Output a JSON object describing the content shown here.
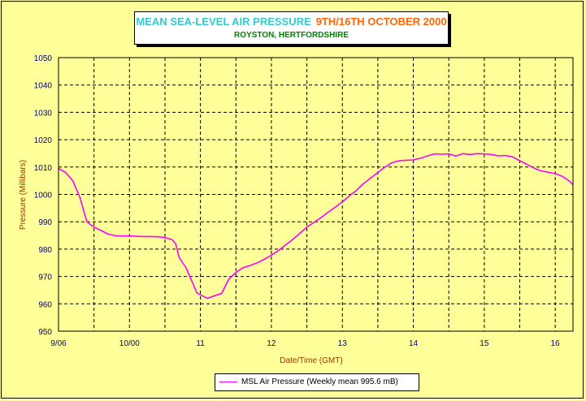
{
  "chart_data": {
    "type": "line",
    "title": "MEAN SEA-LEVEL AIR PRESSURE",
    "title_date": "9TH/16TH OCTOBER 2000",
    "subtitle": "ROYSTON, HERTFORDSHIRE",
    "xlabel": "Date/Time (GMT)",
    "ylabel": "Pressure (Millibars)",
    "xlim": [
      9.0,
      16.25
    ],
    "ylim": [
      950,
      1050
    ],
    "x_ticks": [
      {
        "x": 9.0,
        "label": "9/06"
      },
      {
        "x": 10.0,
        "label": "10/00"
      },
      {
        "x": 11.0,
        "label": "11"
      },
      {
        "x": 12.0,
        "label": "12"
      },
      {
        "x": 13.0,
        "label": "13"
      },
      {
        "x": 14.0,
        "label": "14"
      },
      {
        "x": 15.0,
        "label": "15"
      },
      {
        "x": 16.0,
        "label": "16"
      }
    ],
    "y_ticks": [
      950,
      960,
      970,
      980,
      990,
      1000,
      1010,
      1020,
      1030,
      1040,
      1050
    ],
    "grid": true,
    "grid_x": [
      9.5,
      10.0,
      10.5,
      11.0,
      11.5,
      12.0,
      12.5,
      13.0,
      13.5,
      14.0,
      14.5,
      15.0,
      15.5,
      16.0
    ],
    "legend_position": "bottom-center",
    "series": [
      {
        "name": "MSL Air Pressure (Weekly mean 995.6 mB)",
        "color": "#ff00ff",
        "x": [
          9.0,
          9.1,
          9.2,
          9.3,
          9.4,
          9.5,
          9.6,
          9.7,
          9.8,
          9.9,
          10.0,
          10.1,
          10.2,
          10.3,
          10.4,
          10.5,
          10.6,
          10.65,
          10.7,
          10.8,
          10.9,
          10.95,
          11.0,
          11.1,
          11.2,
          11.3,
          11.35,
          11.4,
          11.5,
          11.6,
          11.7,
          11.8,
          11.9,
          12.0,
          12.1,
          12.2,
          12.3,
          12.4,
          12.5,
          12.6,
          12.7,
          12.8,
          12.9,
          13.0,
          13.1,
          13.2,
          13.3,
          13.4,
          13.5,
          13.6,
          13.7,
          13.8,
          13.9,
          14.0,
          14.1,
          14.2,
          14.3,
          14.4,
          14.5,
          14.6,
          14.7,
          14.8,
          14.9,
          15.0,
          15.1,
          15.2,
          15.3,
          15.4,
          15.5,
          15.6,
          15.7,
          15.8,
          15.9,
          16.0,
          16.1,
          16.2,
          16.25
        ],
        "values": [
          1009.5,
          1008.0,
          1005.0,
          999.0,
          990.0,
          988.0,
          986.8,
          985.5,
          984.9,
          984.8,
          984.8,
          984.7,
          984.6,
          984.6,
          984.5,
          984.2,
          983.5,
          982.0,
          977.0,
          973.0,
          967.0,
          964.0,
          963.3,
          962.0,
          963.0,
          963.8,
          966.5,
          969.0,
          971.5,
          973.2,
          974.0,
          975.0,
          976.3,
          977.8,
          979.5,
          981.5,
          983.5,
          985.8,
          988.0,
          989.8,
          991.5,
          993.5,
          995.3,
          997.3,
          999.5,
          1001.5,
          1004.0,
          1006.0,
          1008.0,
          1010.0,
          1011.6,
          1012.3,
          1012.5,
          1012.6,
          1013.2,
          1014.1,
          1014.8,
          1014.7,
          1014.8,
          1014.0,
          1014.9,
          1014.6,
          1014.9,
          1014.8,
          1014.6,
          1014.1,
          1014.2,
          1013.7,
          1012.3,
          1011.0,
          1009.6,
          1008.6,
          1008.1,
          1007.6,
          1006.6,
          1004.9,
          1003.5
        ]
      }
    ]
  }
}
